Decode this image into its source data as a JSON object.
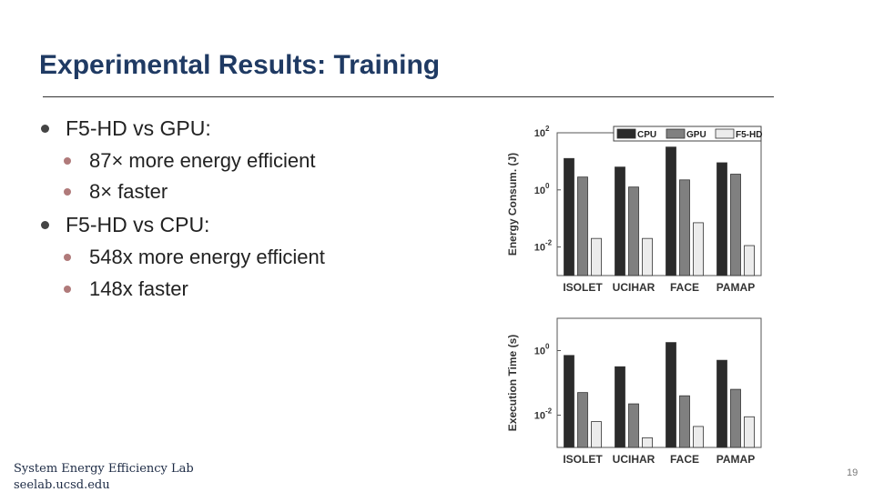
{
  "slide": {
    "title": "Experimental Results: Training",
    "page_number": "19"
  },
  "bullets": [
    {
      "text": "F5-HD vs GPU:",
      "sub": [
        "87× more energy efficient",
        "8× faster"
      ]
    },
    {
      "text": "F5-HD vs CPU:",
      "sub": [
        "548x more energy efficient",
        "148x faster"
      ]
    }
  ],
  "footer": {
    "lab": "System Energy Efficiency Lab",
    "url": "seelab.ucsd.edu"
  },
  "colors": {
    "title": "#1f3a63",
    "cpu": "#2b2b2b",
    "gpu": "#808080",
    "f5hd": "#ececec"
  },
  "chart_data": [
    {
      "type": "bar",
      "title": "",
      "xlabel": "",
      "ylabel": "Energy Consum. (J)",
      "yscale": "log",
      "ylim_exp": [
        -3,
        2
      ],
      "ytick_exps": [
        2,
        0,
        -2
      ],
      "ytick_labels": [
        "10",
        "10",
        "10"
      ],
      "ytick_sups": [
        "2",
        "0",
        "-2"
      ],
      "categories": [
        "ISOLET",
        "UCIHAR",
        "FACE",
        "PAMAP"
      ],
      "legend_position": "top-right",
      "series": [
        {
          "name": "CPU",
          "log_values": [
            1.1,
            0.8,
            1.5,
            0.95
          ]
        },
        {
          "name": "GPU",
          "log_values": [
            0.45,
            0.1,
            0.35,
            0.55
          ]
        },
        {
          "name": "F5-HD",
          "log_values": [
            -1.7,
            -1.7,
            -1.15,
            -1.95
          ]
        }
      ]
    },
    {
      "type": "bar",
      "title": "",
      "xlabel": "",
      "ylabel": "Execution Time (s)",
      "yscale": "log",
      "ylim_exp": [
        -3,
        1
      ],
      "ytick_exps": [
        0,
        -2
      ],
      "ytick_labels": [
        "10",
        "10"
      ],
      "ytick_sups": [
        "0",
        "-2"
      ],
      "categories": [
        "ISOLET",
        "UCIHAR",
        "FACE",
        "PAMAP"
      ],
      "series": [
        {
          "name": "CPU",
          "log_values": [
            -0.15,
            -0.5,
            0.25,
            -0.3
          ]
        },
        {
          "name": "GPU",
          "log_values": [
            -1.3,
            -1.65,
            -1.4,
            -1.2
          ]
        },
        {
          "name": "F5-HD",
          "log_values": [
            -2.2,
            -2.7,
            -2.35,
            -2.05
          ]
        }
      ]
    }
  ]
}
